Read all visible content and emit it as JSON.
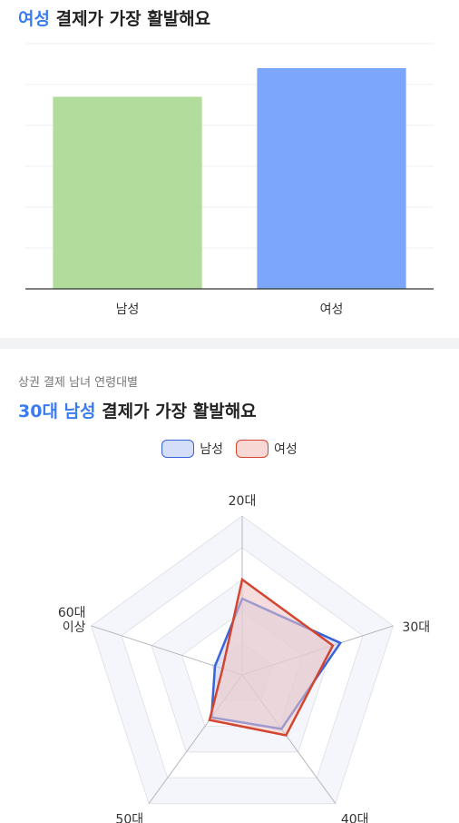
{
  "gender_chart": {
    "title_accent": "여성",
    "title_rest": " 결제가 가장 활발해요"
  },
  "age_chart": {
    "subtitle": "상권 결제 남녀 연령대별",
    "title_accent": "30대 남성",
    "title_rest": " 결제가 가장 활발해요"
  },
  "chart_data": [
    {
      "type": "bar",
      "categories": [
        "남성",
        "여성"
      ],
      "values": [
        47,
        54
      ],
      "colors": [
        "#b2dc9b",
        "#7ba6fa"
      ],
      "ylim": [
        0,
        60
      ],
      "grid": true
    },
    {
      "type": "radar",
      "axes": [
        "20대",
        "30대",
        "40대",
        "50대",
        "60대\n이상"
      ],
      "range": [
        0,
        100
      ],
      "legend": "top-center",
      "series": [
        {
          "name": "남성",
          "values": [
            48,
            65,
            42,
            33,
            18
          ],
          "stroke": "#3a63d9",
          "fill": "#c9d3f3"
        },
        {
          "name": "여성",
          "values": [
            60,
            60,
            47,
            35,
            13
          ],
          "stroke": "#d2452f",
          "fill": "#f3c9c2"
        }
      ]
    }
  ]
}
